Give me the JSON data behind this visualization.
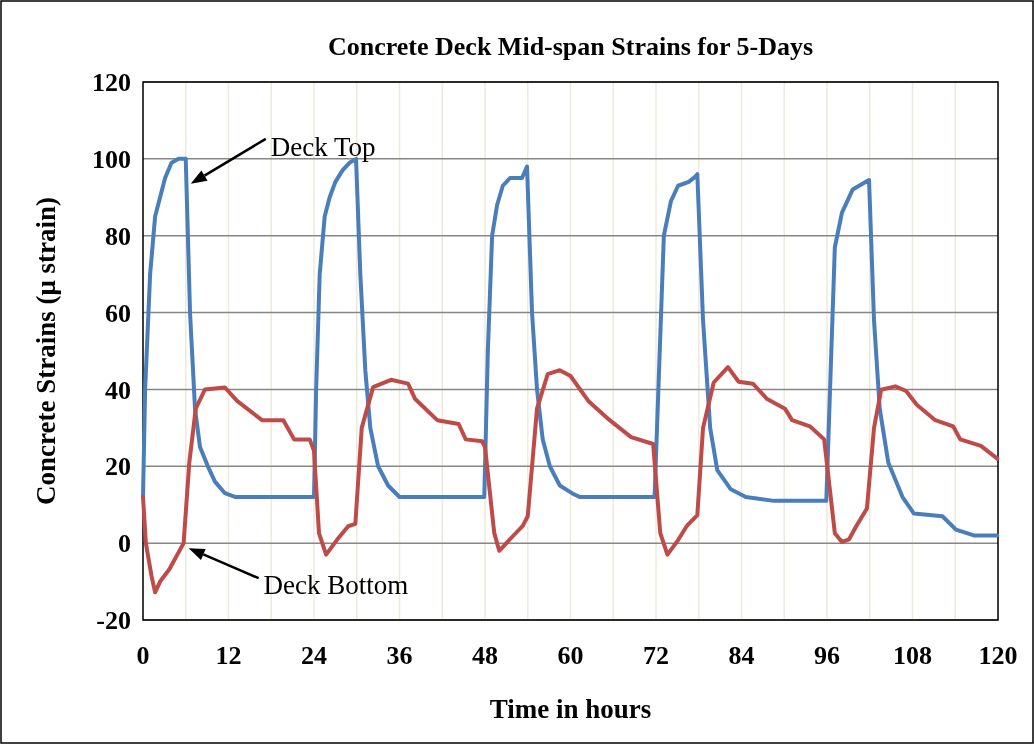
{
  "chart_data": {
    "type": "line",
    "title": "Concrete Deck Mid-span Strains for 5-Days",
    "xlabel": "Time in hours",
    "ylabel": "Concrete Strains (μ strain)",
    "xlim": [
      0,
      120
    ],
    "ylim": [
      -20,
      120
    ],
    "xticks": [
      0,
      {
        "value": 6,
        "label": null
      },
      12,
      {
        "value": 18,
        "label": null
      },
      24,
      {
        "value": 30,
        "label": null
      },
      36,
      {
        "value": 42,
        "label": null
      },
      48,
      {
        "value": 54,
        "label": null
      },
      60,
      {
        "value": 66,
        "label": null
      },
      72,
      {
        "value": 78,
        "label": null
      },
      84,
      {
        "value": 90,
        "label": null
      },
      96,
      {
        "value": 102,
        "label": null
      },
      108,
      {
        "value": 114,
        "label": null
      },
      120
    ],
    "yticks": [
      -20,
      0,
      20,
      40,
      60,
      80,
      100,
      120
    ],
    "grid": true,
    "legend": false,
    "marker": "none",
    "line_style": "solid",
    "series": [
      {
        "name": "Deck Top",
        "color": "#4a7ebb",
        "x": [
          0,
          0.3,
          1,
          1.7,
          2.4,
          3.1,
          4,
          5,
          6,
          6.6,
          7.3,
          8,
          9.1,
          10.1,
          11.5,
          13,
          23.4,
          24,
          24.3,
          24.8,
          25.5,
          26.2,
          27,
          28,
          29,
          29.9,
          30.5,
          31.2,
          31.9,
          33,
          34.4,
          36,
          47.3,
          47.9,
          48.4,
          49,
          49.7,
          50.5,
          51.5,
          53.2,
          53.9,
          54.6,
          55.3,
          56.1,
          57.1,
          58.5,
          60.2,
          61.3,
          71.2,
          71.8,
          73.1,
          74.1,
          75.1,
          76.6,
          77.6,
          77.8,
          78.6,
          79.6,
          80.6,
          82.5,
          84.6,
          88.6,
          93.6,
          95.6,
          95.9,
          97.1,
          98.1,
          99.6,
          101.9,
          102.6,
          103.4,
          104.6,
          106.6,
          108.2,
          112.2,
          114.1,
          116.6,
          119.9
        ],
        "values": [
          12,
          40,
          70,
          85,
          90,
          95,
          99,
          100,
          100,
          60,
          35,
          25,
          20,
          16,
          13,
          12,
          12,
          12,
          40,
          70,
          85,
          90,
          94,
          97,
          99,
          100,
          70,
          45,
          30,
          20,
          15,
          12,
          12,
          12,
          50,
          80,
          88,
          93,
          95,
          95,
          98,
          60,
          40,
          27,
          20,
          15,
          13,
          12,
          12,
          12,
          80,
          89,
          93,
          94,
          95.5,
          96,
          58,
          30,
          19,
          14,
          12,
          11,
          11,
          11,
          11,
          77,
          86,
          92,
          94.5,
          58,
          35,
          21,
          12,
          7.7,
          7,
          3.5,
          2,
          2
        ]
      },
      {
        "name": "Deck Bottom",
        "color": "#be4b48",
        "x": [
          0,
          0.4,
          1.2,
          1.7,
          2.4,
          3.7,
          5.7,
          6.5,
          7.4,
          8.7,
          11.5,
          13.2,
          16.7,
          19.7,
          21.2,
          23.4,
          24,
          24.7,
          25.7,
          27.2,
          28.8,
          29.8,
          30.7,
          32.3,
          34.8,
          37.2,
          38.2,
          41.3,
          44.3,
          45.3,
          47.6,
          48,
          49.3,
          50,
          51.8,
          53.3,
          54,
          55.3,
          56.8,
          58.5,
          60,
          62.5,
          65.5,
          68.5,
          71.6,
          72.6,
          73.6,
          75.1,
          76.3,
          77.8,
          78.6,
          80.1,
          82.1,
          83.6,
          85.6,
          87.6,
          90.1,
          91.1,
          93.6,
          95.6,
          97.1,
          98.1,
          99.1,
          100.1,
          101.6,
          102.6,
          103.6,
          105.6,
          107.1,
          108.6,
          111.2,
          113.7,
          114.7,
          117.6,
          119.9
        ],
        "values": [
          12,
          0,
          -8.6,
          -12.8,
          -10,
          -6.8,
          0,
          21,
          35,
          40,
          40.5,
          37,
          32,
          32,
          27,
          27,
          24,
          2.6,
          -3,
          0.8,
          4.4,
          5,
          30,
          40.6,
          42.5,
          41.5,
          37.5,
          32,
          31,
          27,
          26.5,
          25,
          2.6,
          -2,
          1.6,
          4.5,
          7,
          35,
          44,
          45,
          43.5,
          37,
          32,
          27.6,
          25.8,
          2.6,
          -3,
          0.8,
          4.4,
          7.3,
          30,
          41.8,
          45.8,
          42,
          41.5,
          37.5,
          35,
          32,
          30.4,
          27,
          2.6,
          0.3,
          1,
          4.4,
          9,
          30,
          39.9,
          40.8,
          39.6,
          36,
          32,
          30.4,
          27,
          25.3,
          22
        ]
      }
    ]
  }
}
